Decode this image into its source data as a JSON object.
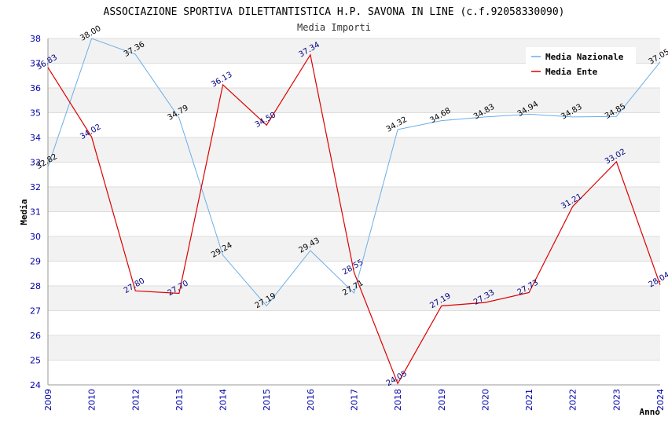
{
  "chart_data": {
    "type": "line",
    "title": "ASSOCIAZIONE SPORTIVA DILETTANTISTICA H.P. SAVONA IN LINE (c.f.92058330090)",
    "subtitle": "Media Importi",
    "xlabel": "Anno",
    "ylabel": "Media",
    "categories": [
      "2009",
      "2010",
      "2012",
      "2013",
      "2014",
      "2015",
      "2016",
      "2017",
      "2018",
      "2019",
      "2020",
      "2021",
      "2022",
      "2023",
      "2024"
    ],
    "ylim": [
      24,
      38
    ],
    "yticks": [
      "24",
      "25",
      "26",
      "27",
      "28",
      "29",
      "30",
      "31",
      "32",
      "33",
      "34",
      "35",
      "36",
      "37",
      "38"
    ],
    "grid": true,
    "legend_position": "top-right",
    "series": [
      {
        "name": "Media Nazionale",
        "color": "#6aaee8",
        "label_color": "#000000",
        "values": [
          32.82,
          38.0,
          37.36,
          34.79,
          29.24,
          27.19,
          29.43,
          27.71,
          34.32,
          34.68,
          34.83,
          34.94,
          34.83,
          34.85,
          37.05
        ],
        "labels": [
          "32.82",
          "38.00",
          "37.36",
          "34.79",
          "29.24",
          "27.19",
          "29.43",
          "27.71",
          "34.32",
          "34.68",
          "34.83",
          "34.94",
          "34.83",
          "34.85",
          "37.05"
        ]
      },
      {
        "name": "Media Ente",
        "color": "#dd0000",
        "label_color": "#000080",
        "values": [
          36.83,
          34.02,
          27.8,
          27.7,
          36.13,
          34.5,
          37.34,
          28.55,
          24.05,
          27.19,
          27.33,
          27.73,
          31.21,
          33.02,
          28.04
        ],
        "labels": [
          "36.83",
          "34.02",
          "27.80",
          "27.70",
          "36.13",
          "34.50",
          "37.34",
          "28.55",
          "24.05",
          "27.19",
          "27.33",
          "27.73",
          "31.21",
          "33.02",
          "28.04"
        ]
      }
    ]
  }
}
